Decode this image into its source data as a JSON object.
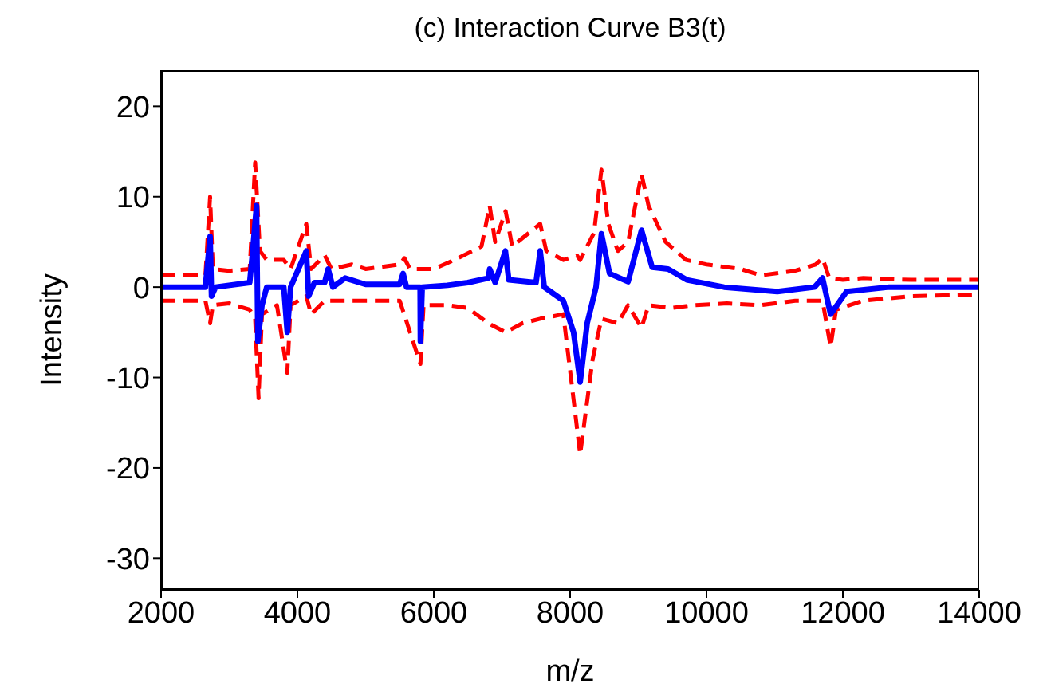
{
  "chart_data": {
    "type": "line",
    "title": "(c) Interaction Curve B3(t)",
    "xlabel": "m/z",
    "ylabel": "Intensity",
    "xlim": [
      2000,
      14000
    ],
    "xticks": [
      2000,
      4000,
      6000,
      8000,
      10000,
      12000,
      14000
    ],
    "ylim": [
      -33.5,
      24
    ],
    "yticks": [
      -30,
      -20,
      -10,
      0,
      10,
      20
    ],
    "marker": "none",
    "series": [
      {
        "color": "#ff0000",
        "line_style": "dashed",
        "x": [
          2000,
          2650,
          2719,
          2760,
          3000,
          3300,
          3380,
          3450,
          3550,
          3800,
          3900,
          4130,
          4200,
          4400,
          4500,
          4800,
          5000,
          5500,
          5570,
          5650,
          6000,
          6300,
          6700,
          6820,
          6900,
          7054,
          7150,
          7561,
          7650,
          7900,
          8100,
          8147,
          8350,
          8459,
          8560,
          8700,
          8850,
          9047,
          9150,
          9400,
          9700,
          10000,
          10500,
          10800,
          11300,
          11600,
          11702,
          11800,
          12000,
          12300,
          13000,
          14000
        ],
        "values": [
          1.3,
          1.3,
          10,
          2,
          1.8,
          2,
          13.8,
          4,
          3,
          3,
          2,
          7,
          2,
          3.5,
          2,
          2.5,
          2,
          2.5,
          3.2,
          2,
          2,
          3,
          4.5,
          9,
          5,
          8.4,
          4.5,
          7,
          4,
          3,
          3.5,
          3,
          6,
          13,
          7,
          4,
          5,
          12.5,
          9,
          5,
          3,
          2.5,
          2,
          1.3,
          1.8,
          2.5,
          3.2,
          1,
          0.8,
          1,
          0.8,
          0.8
        ]
      },
      {
        "color": "#ff0000",
        "line_style": "dashed",
        "x": [
          2000,
          2650,
          2719,
          2760,
          3000,
          3300,
          3380,
          3430,
          3480,
          3700,
          3851,
          3900,
          4130,
          4200,
          4400,
          4800,
          5500,
          5804,
          5850,
          6200,
          6500,
          6800,
          7054,
          7300,
          7561,
          7900,
          8147,
          8330,
          8459,
          8700,
          8850,
          9047,
          9150,
          9500,
          9800,
          10300,
          10800,
          11300,
          11702,
          11820,
          11900,
          12300,
          13000,
          14000
        ],
        "values": [
          -1.5,
          -1.5,
          -4,
          -2,
          -1.8,
          -2.5,
          -3.5,
          -12.3,
          -3,
          -2,
          -9.5,
          -2,
          -1,
          -3,
          -1.5,
          -1.5,
          -1.5,
          -8.5,
          -2,
          -2,
          -2.3,
          -4,
          -5,
          -4,
          -3.5,
          -3,
          -18.5,
          -8,
          -3.5,
          -4,
          -2,
          -4.5,
          -2,
          -2.3,
          -2,
          -1.8,
          -2,
          -1.5,
          -1.5,
          -6.6,
          -2.5,
          -1.5,
          -1,
          -0.8
        ]
      },
      {
        "color": "#0000ff",
        "line_style": "solid",
        "x": [
          2000,
          2650,
          2719,
          2740,
          2800,
          3300,
          3344,
          3400,
          3420,
          3480,
          3550,
          3800,
          3851,
          3900,
          4130,
          4164,
          4250,
          4400,
          4450,
          4520,
          4700,
          5000,
          5500,
          5550,
          5600,
          5800,
          5804,
          5830,
          6200,
          6500,
          6800,
          6820,
          6900,
          7050,
          7100,
          7500,
          7561,
          7620,
          7900,
          8050,
          8147,
          8250,
          8380,
          8459,
          8578,
          8850,
          9047,
          9203,
          9437,
          9711,
          10258,
          11039,
          11585,
          11702,
          11820,
          12054,
          12679,
          14000
        ],
        "values": [
          0,
          0,
          5.6,
          -1,
          0,
          0.5,
          4,
          9,
          -6,
          -2,
          0,
          0,
          -5,
          0,
          4,
          -1,
          0.5,
          0.5,
          2,
          0,
          1,
          0.3,
          0.3,
          1.5,
          0,
          0,
          -6,
          0,
          0.2,
          0.5,
          1,
          2,
          0.5,
          4,
          0.8,
          0.5,
          4,
          0,
          -1.5,
          -5,
          -10.5,
          -4,
          0,
          5.9,
          1.5,
          0.6,
          6.3,
          2.2,
          2,
          0.8,
          0,
          -0.5,
          0,
          1,
          -3,
          -0.5,
          0,
          0
        ]
      }
    ]
  }
}
